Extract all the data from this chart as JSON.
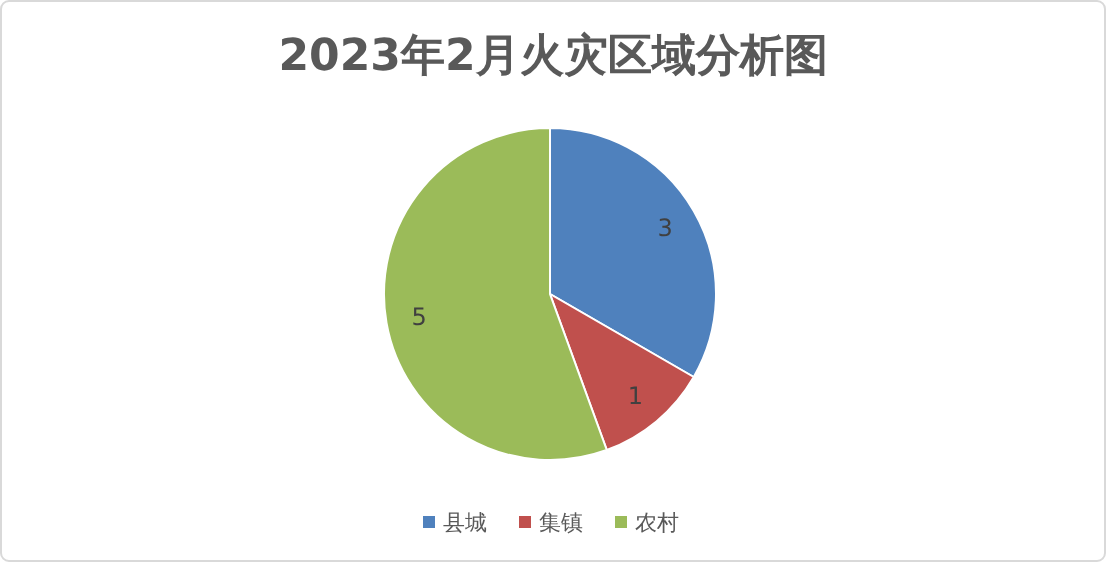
{
  "chart_data": {
    "type": "pie",
    "title": "2023年2月火灾区域分析图",
    "categories": [
      "县城",
      "集镇",
      "农村"
    ],
    "values": [
      3,
      1,
      5
    ],
    "colors": [
      "#4f81bd",
      "#c0504d",
      "#9bbb59"
    ],
    "data_labels": true,
    "legend": "bottom"
  }
}
